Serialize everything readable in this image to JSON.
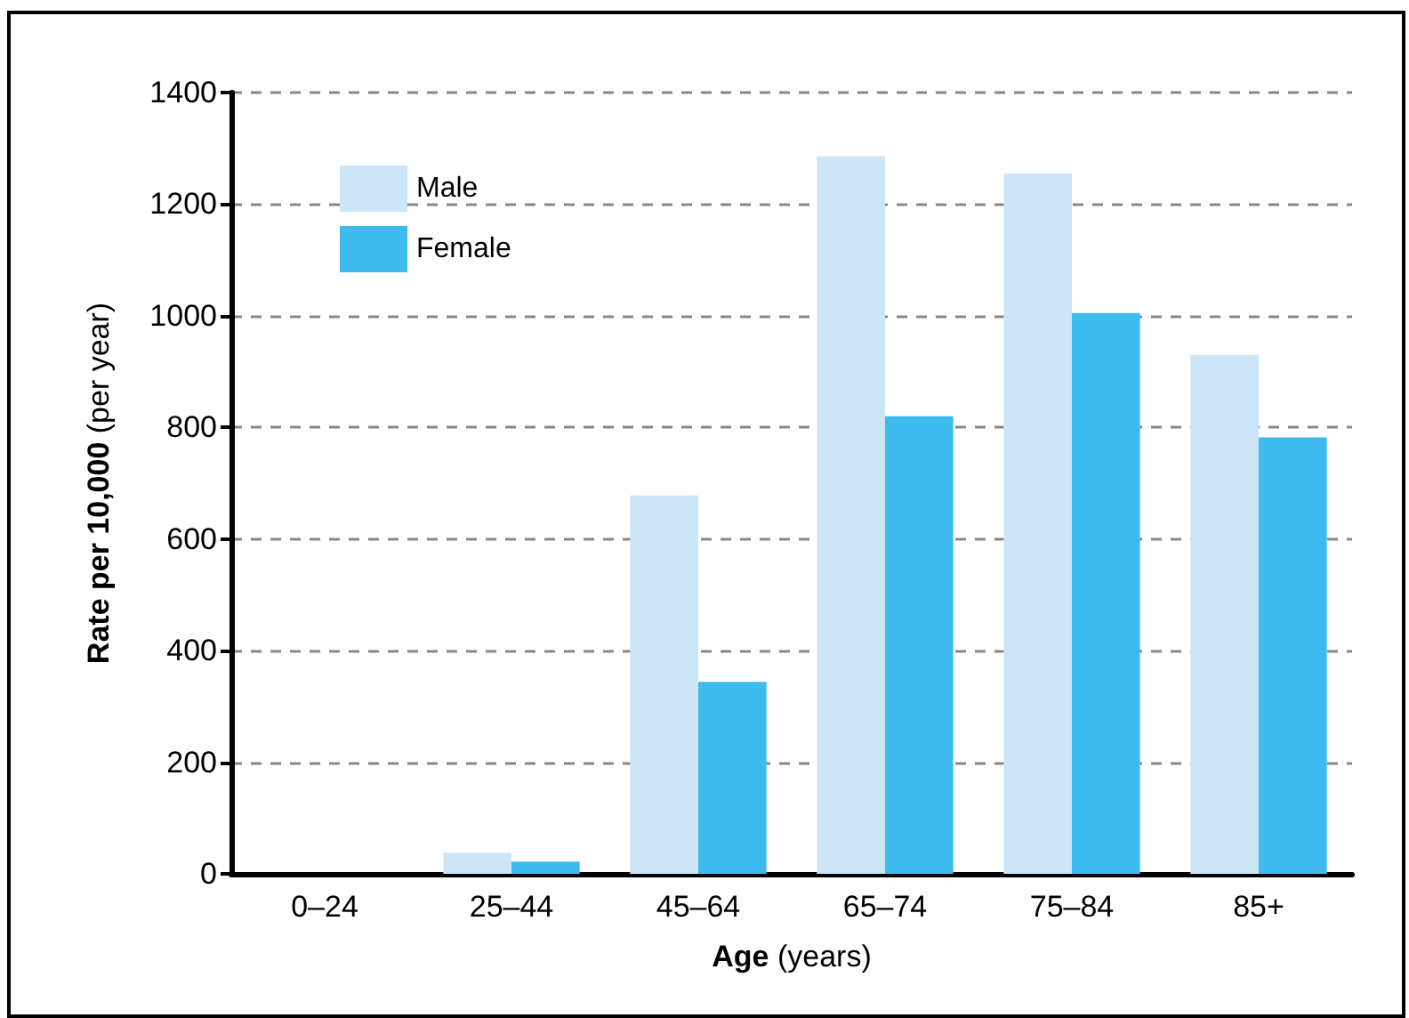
{
  "chart_data": {
    "type": "bar",
    "xlabel": "Age (years)",
    "ylabel": "Rate per 10,000 (per year)",
    "categories": [
      "0–24",
      "25–44",
      "45–64",
      "65–74",
      "75–84",
      "85+"
    ],
    "series": [
      {
        "name": "Male",
        "color": "#cce6f7",
        "values": [
          0,
          38,
          678,
          1286,
          1255,
          930
        ]
      },
      {
        "name": "Female",
        "color": "#3dbbee",
        "values": [
          0,
          22,
          344,
          820,
          1005,
          782
        ]
      }
    ],
    "ylim": [
      0,
      1400
    ],
    "yticks": [
      0,
      200,
      400,
      600,
      800,
      1000,
      1200,
      1400
    ],
    "grid": "y",
    "legend": "top left"
  }
}
